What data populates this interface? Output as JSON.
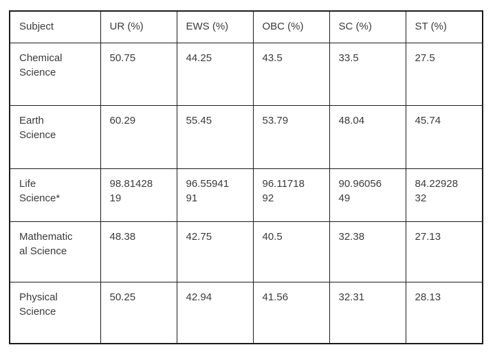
{
  "colors": {
    "background": "#ffffff",
    "border": "#1a1a1a",
    "text": "#3a3a3a"
  },
  "table": {
    "header": [
      "Subject",
      "UR (%)",
      "EWS (%)",
      "OBC (%)",
      "SC (%)",
      "ST (%)"
    ],
    "rows": [
      {
        "subject": "Chemical\nScience",
        "ur": "50.75",
        "ews": "44.25",
        "obc": "43.5",
        "sc": "33.5",
        "st": "27.5"
      },
      {
        "subject": "Earth\nScience",
        "ur": "60.29",
        "ews": "55.45",
        "obc": "53.79",
        "sc": "48.04",
        "st": "45.74"
      },
      {
        "subject": "Life\nScience*",
        "ur": "98.81428\n19",
        "ews": "96.55941\n91",
        "obc": "96.11718\n92",
        "sc": "90.96056\n49",
        "st": "84.22928\n32"
      },
      {
        "subject": "Mathematic\nal Science",
        "ur": "48.38",
        "ews": "42.75",
        "obc": "40.5",
        "sc": "32.38",
        "st": "27.13"
      },
      {
        "subject": "Physical\nScience",
        "ur": "50.25",
        "ews": "42.94",
        "obc": "41.56",
        "sc": "32.31",
        "st": "28.13"
      }
    ]
  }
}
